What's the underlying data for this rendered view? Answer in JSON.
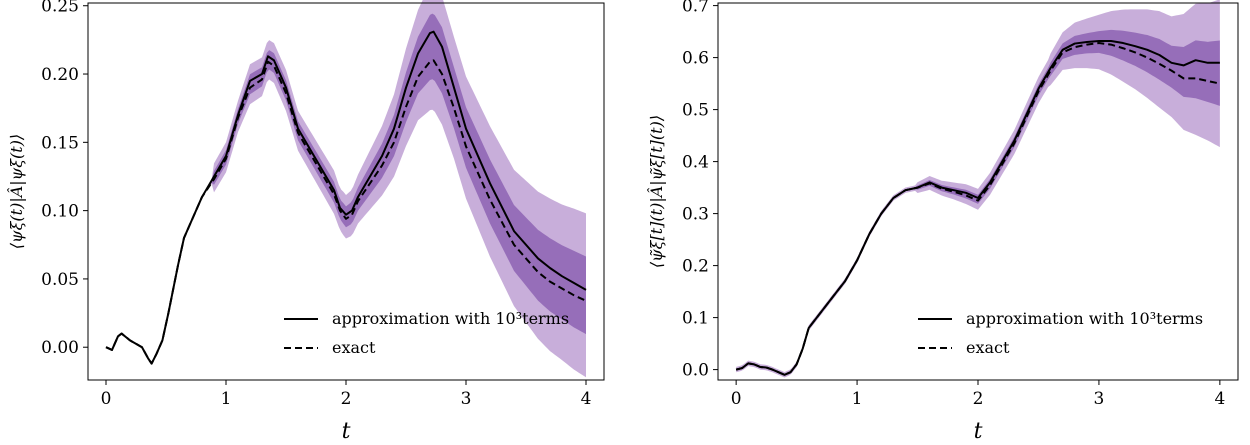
{
  "colors": {
    "band_outer": "#c2a5d6",
    "band_inner": "#8d63b3",
    "line": "#000000",
    "axis": "#000000"
  },
  "chart_data": [
    {
      "type": "line",
      "xlabel": "t",
      "ylabel": "⟨ψξ(t)|Â|ψξ(t)⟩",
      "xlim": [
        -0.15,
        4.15
      ],
      "ylim": [
        -0.024,
        0.252
      ],
      "xticks": [
        0,
        1,
        2,
        3,
        4
      ],
      "xtick_labels": [
        "0",
        "1",
        "2",
        "3",
        "4"
      ],
      "yticks": [
        0.0,
        0.05,
        0.1,
        0.15,
        0.2,
        0.25
      ],
      "ytick_labels": [
        "0.00",
        "0.05",
        "0.10",
        "0.15",
        "0.20",
        "0.25"
      ],
      "legend_position": "lower-right",
      "grid": false,
      "series": [
        {
          "name": "approximation with 10³terms",
          "style": "solid",
          "x": [
            0,
            0.05,
            0.1,
            0.13,
            0.2,
            0.3,
            0.35,
            0.38,
            0.42,
            0.47,
            0.52,
            0.6,
            0.65,
            0.7,
            0.8,
            0.9,
            1.0,
            1.1,
            1.2,
            1.3,
            1.35,
            1.4,
            1.5,
            1.6,
            1.7,
            1.8,
            1.9,
            1.95,
            2.0,
            2.05,
            2.1,
            2.2,
            2.3,
            2.4,
            2.5,
            2.6,
            2.7,
            2.73,
            2.8,
            2.9,
            3.0,
            3.2,
            3.4,
            3.6,
            3.7,
            3.8,
            3.9,
            4.0
          ],
          "values": [
            0.0,
            -0.002,
            0.008,
            0.01,
            0.005,
            0.0,
            -0.008,
            -0.012,
            -0.005,
            0.005,
            0.025,
            0.06,
            0.08,
            0.09,
            0.11,
            0.125,
            0.14,
            0.17,
            0.195,
            0.2,
            0.213,
            0.21,
            0.19,
            0.16,
            0.145,
            0.13,
            0.115,
            0.102,
            0.097,
            0.1,
            0.11,
            0.125,
            0.14,
            0.16,
            0.19,
            0.215,
            0.23,
            0.231,
            0.22,
            0.19,
            0.16,
            0.12,
            0.085,
            0.065,
            0.058,
            0.052,
            0.047,
            0.042
          ]
        },
        {
          "name": "exact",
          "style": "dashed",
          "x": [
            0,
            0.05,
            0.1,
            0.13,
            0.2,
            0.3,
            0.35,
            0.38,
            0.42,
            0.47,
            0.52,
            0.6,
            0.65,
            0.7,
            0.8,
            0.9,
            1.0,
            1.1,
            1.2,
            1.3,
            1.35,
            1.4,
            1.5,
            1.6,
            1.7,
            1.8,
            1.9,
            1.95,
            2.0,
            2.05,
            2.1,
            2.2,
            2.3,
            2.4,
            2.5,
            2.6,
            2.7,
            2.73,
            2.8,
            2.9,
            3.0,
            3.2,
            3.4,
            3.6,
            3.7,
            3.8,
            3.9,
            4.0
          ],
          "values": [
            0.0,
            -0.002,
            0.008,
            0.01,
            0.005,
            0.0,
            -0.008,
            -0.012,
            -0.005,
            0.005,
            0.025,
            0.06,
            0.08,
            0.09,
            0.11,
            0.123,
            0.138,
            0.168,
            0.19,
            0.196,
            0.209,
            0.206,
            0.186,
            0.157,
            0.142,
            0.127,
            0.112,
            0.1,
            0.094,
            0.097,
            0.107,
            0.12,
            0.133,
            0.15,
            0.176,
            0.198,
            0.209,
            0.21,
            0.2,
            0.175,
            0.147,
            0.108,
            0.075,
            0.055,
            0.048,
            0.043,
            0.038,
            0.034
          ]
        }
      ]
    },
    {
      "type": "line",
      "xlabel": "t",
      "ylabel": "⟨ψ̃ξ[t](t)|Â|ψ̃ξ[t](t)⟩",
      "xlim": [
        -0.15,
        4.15
      ],
      "ylim": [
        -0.02,
        0.705
      ],
      "xticks": [
        0,
        1,
        2,
        3,
        4
      ],
      "xtick_labels": [
        "0",
        "1",
        "2",
        "3",
        "4"
      ],
      "yticks": [
        0.0,
        0.1,
        0.2,
        0.3,
        0.4,
        0.5,
        0.6,
        0.7
      ],
      "ytick_labels": [
        "0.0",
        "0.1",
        "0.2",
        "0.3",
        "0.4",
        "0.5",
        "0.6",
        "0.7"
      ],
      "legend_position": "lower-right",
      "grid": false,
      "series": [
        {
          "name": "approximation with 10³terms",
          "style": "solid",
          "x": [
            0,
            0.05,
            0.1,
            0.15,
            0.2,
            0.25,
            0.3,
            0.35,
            0.4,
            0.45,
            0.5,
            0.55,
            0.6,
            0.7,
            0.8,
            0.9,
            1.0,
            1.1,
            1.2,
            1.3,
            1.4,
            1.5,
            1.6,
            1.7,
            1.8,
            1.9,
            2.0,
            2.1,
            2.2,
            2.3,
            2.4,
            2.5,
            2.6,
            2.7,
            2.8,
            2.9,
            3.0,
            3.1,
            3.2,
            3.3,
            3.4,
            3.5,
            3.6,
            3.7,
            3.8,
            3.9,
            4.0
          ],
          "values": [
            0.0,
            0.003,
            0.012,
            0.01,
            0.005,
            0.004,
            0.0,
            -0.005,
            -0.01,
            -0.005,
            0.01,
            0.04,
            0.08,
            0.11,
            0.14,
            0.17,
            0.21,
            0.26,
            0.3,
            0.33,
            0.345,
            0.35,
            0.36,
            0.35,
            0.345,
            0.34,
            0.33,
            0.36,
            0.4,
            0.44,
            0.49,
            0.54,
            0.58,
            0.615,
            0.627,
            0.63,
            0.632,
            0.632,
            0.628,
            0.622,
            0.615,
            0.605,
            0.59,
            0.585,
            0.595,
            0.59,
            0.59
          ]
        },
        {
          "name": "exact",
          "style": "dashed",
          "x": [
            0,
            0.05,
            0.1,
            0.15,
            0.2,
            0.25,
            0.3,
            0.35,
            0.4,
            0.45,
            0.5,
            0.55,
            0.6,
            0.7,
            0.8,
            0.9,
            1.0,
            1.1,
            1.2,
            1.3,
            1.4,
            1.5,
            1.6,
            1.7,
            1.8,
            1.9,
            2.0,
            2.1,
            2.2,
            2.3,
            2.4,
            2.5,
            2.6,
            2.7,
            2.8,
            2.9,
            3.0,
            3.1,
            3.2,
            3.3,
            3.4,
            3.5,
            3.6,
            3.7,
            3.8,
            3.9,
            4.0
          ],
          "values": [
            0.0,
            0.003,
            0.012,
            0.01,
            0.005,
            0.004,
            0.0,
            -0.005,
            -0.01,
            -0.005,
            0.01,
            0.04,
            0.08,
            0.11,
            0.14,
            0.17,
            0.21,
            0.26,
            0.3,
            0.33,
            0.345,
            0.35,
            0.358,
            0.348,
            0.342,
            0.335,
            0.325,
            0.355,
            0.395,
            0.435,
            0.485,
            0.535,
            0.575,
            0.61,
            0.62,
            0.625,
            0.628,
            0.625,
            0.618,
            0.61,
            0.6,
            0.588,
            0.575,
            0.56,
            0.56,
            0.555,
            0.55
          ]
        }
      ]
    }
  ]
}
